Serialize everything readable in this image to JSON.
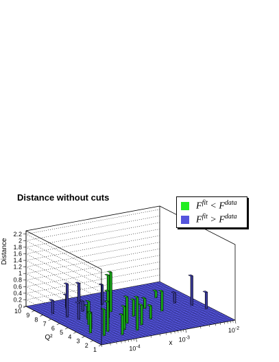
{
  "title": "Distance without cuts",
  "legend": [
    {
      "label": "F^fit < F^data",
      "color": "#22ee22"
    },
    {
      "label": "F^fit > F^data",
      "color": "#5555dd"
    }
  ],
  "colors": {
    "fit_lt_data": "#22ee22",
    "fit_gt_data": "#5555dd",
    "floor": "#5555dd",
    "frame": "#000000"
  },
  "chart_data": {
    "type": "bar3d",
    "title": "Distance without cuts",
    "zlabel": "Distance",
    "xlabel": "x",
    "ylabel": "Q²",
    "x_scale": "log",
    "x_tick_labels": [
      "10^-4",
      "10^-3",
      "10^-2"
    ],
    "y_tick_labels": [
      "1",
      "2",
      "3",
      "4",
      "5",
      "6",
      "7",
      "8",
      "9",
      "10"
    ],
    "z_tick_labels": [
      "0",
      "0.2",
      "0.4",
      "0.6",
      "0.8",
      "1",
      "1.2",
      "1.4",
      "1.6",
      "1.8",
      "2",
      "2.2"
    ],
    "zlim": [
      0,
      2.3
    ],
    "legend_placement": "top-right",
    "series": [
      {
        "name": "F^fit < F^data",
        "color": "#22ee22",
        "bars": [
          {
            "x": 3e-05,
            "q2": 3.5,
            "z": 0.6
          },
          {
            "x": 4e-05,
            "q2": 4.2,
            "z": 0.5
          },
          {
            "x": 5e-05,
            "q2": 5.0,
            "z": 0.7
          },
          {
            "x": 4e-05,
            "q2": 2.6,
            "z": 0.8
          },
          {
            "x": 6e-05,
            "q2": 3.2,
            "z": 0.9
          },
          {
            "x": 7e-05,
            "q2": 6.0,
            "z": 0.4
          },
          {
            "x": 8e-05,
            "q2": 2.2,
            "z": 0.6
          },
          {
            "x": 0.0001,
            "q2": 4.5,
            "z": 1.0
          },
          {
            "x": 0.00012,
            "q2": 3.0,
            "z": 0.7
          },
          {
            "x": 0.00015,
            "q2": 5.5,
            "z": 1.3
          },
          {
            "x": 0.00018,
            "q2": 2.5,
            "z": 1.0
          },
          {
            "x": 0.0002,
            "q2": 4.0,
            "z": 0.8
          },
          {
            "x": 0.00025,
            "q2": 6.5,
            "z": 1.2
          },
          {
            "x": 0.0003,
            "q2": 3.3,
            "z": 0.6
          },
          {
            "x": 0.0004,
            "q2": 5.0,
            "z": 0.5
          },
          {
            "x": 0.0006,
            "q2": 4.0,
            "z": 0.4
          },
          {
            "x": 0.001,
            "q2": 6.0,
            "z": 0.3
          },
          {
            "x": 0.0015,
            "q2": 5.0,
            "z": 0.6
          },
          {
            "x": 0.003,
            "q2": 7.5,
            "z": 0.2
          }
        ]
      },
      {
        "name": "F^fit > F^data",
        "color": "#5555dd",
        "bars": [
          {
            "x": 3e-05,
            "q2": 8.0,
            "z": 0.4
          },
          {
            "x": 4e-05,
            "q2": 7.0,
            "z": 1.0
          },
          {
            "x": 5e-05,
            "q2": 6.2,
            "z": 0.5
          },
          {
            "x": 7e-05,
            "q2": 8.5,
            "z": 0.4
          },
          {
            "x": 0.0001,
            "q2": 7.5,
            "z": 0.3
          },
          {
            "x": 0.00015,
            "q2": 9.0,
            "z": 0.6
          },
          {
            "x": 0.0003,
            "q2": 8.0,
            "z": 0.6
          },
          {
            "x": 0.004,
            "q2": 6.0,
            "z": 0.3
          },
          {
            "x": 0.006,
            "q2": 5.0,
            "z": 0.9
          },
          {
            "x": 0.008,
            "q2": 4.0,
            "z": 0.5
          }
        ]
      }
    ]
  }
}
